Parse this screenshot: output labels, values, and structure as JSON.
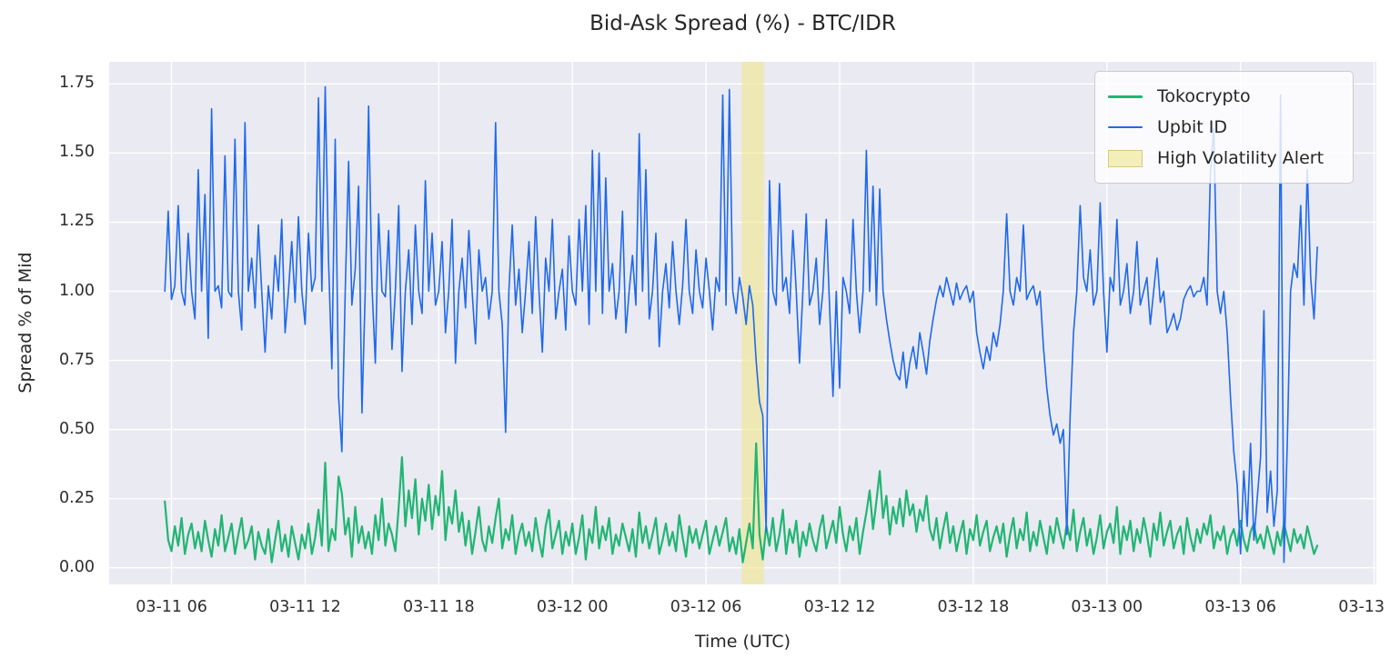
{
  "chart_data": {
    "type": "line",
    "title": "Bid-Ask Spread (%) - BTC/IDR",
    "xlabel": "Time (UTC)",
    "ylabel": "Spread % of Mid",
    "background": "#eaeaf2",
    "grid": true,
    "grid_color": "#ffffff",
    "xlim_hours": [
      3.2,
      60.1
    ],
    "ylim": [
      -0.06,
      1.83
    ],
    "x_ticks": [
      {
        "hour": 6,
        "label": "03-11 06"
      },
      {
        "hour": 12,
        "label": "03-11 12"
      },
      {
        "hour": 18,
        "label": "03-11 18"
      },
      {
        "hour": 24,
        "label": "03-12 00"
      },
      {
        "hour": 30,
        "label": "03-12 06"
      },
      {
        "hour": 36,
        "label": "03-12 12"
      },
      {
        "hour": 42,
        "label": "03-12 18"
      },
      {
        "hour": 48,
        "label": "03-13 00"
      },
      {
        "hour": 54,
        "label": "03-13 06"
      },
      {
        "hour": 60,
        "label": "03-13 12"
      }
    ],
    "y_ticks": [
      {
        "value": 0.0,
        "label": "0.00"
      },
      {
        "value": 0.25,
        "label": "0.25"
      },
      {
        "value": 0.5,
        "label": "0.50"
      },
      {
        "value": 0.75,
        "label": "0.75"
      },
      {
        "value": 1.0,
        "label": "1.00"
      },
      {
        "value": 1.25,
        "label": "1.25"
      },
      {
        "value": 1.5,
        "label": "1.50"
      },
      {
        "value": 1.75,
        "label": "1.75"
      }
    ],
    "x_start_hours": 5.7,
    "x_step_hours": 0.15,
    "highlight": {
      "label": "High Volatility Alert",
      "start_hour": 31.6,
      "end_hour": 32.6,
      "color": "rgba(240,230,140,0.6)",
      "edge": "#d5ca85"
    },
    "legend": {
      "position": "top-right"
    },
    "series": [
      {
        "name": "Tokocrypto",
        "color": "#21b573",
        "width": 2.2,
        "values": [
          0.24,
          0.1,
          0.06,
          0.15,
          0.08,
          0.18,
          0.05,
          0.12,
          0.16,
          0.07,
          0.13,
          0.06,
          0.17,
          0.1,
          0.04,
          0.14,
          0.08,
          0.19,
          0.06,
          0.11,
          0.16,
          0.05,
          0.12,
          0.18,
          0.07,
          0.1,
          0.15,
          0.03,
          0.13,
          0.08,
          0.05,
          0.14,
          0.02,
          0.1,
          0.17,
          0.06,
          0.12,
          0.04,
          0.15,
          0.09,
          0.03,
          0.12,
          0.07,
          0.16,
          0.05,
          0.11,
          0.21,
          0.08,
          0.38,
          0.06,
          0.14,
          0.1,
          0.33,
          0.27,
          0.12,
          0.18,
          0.04,
          0.22,
          0.09,
          0.15,
          0.07,
          0.13,
          0.05,
          0.19,
          0.1,
          0.25,
          0.08,
          0.16,
          0.12,
          0.06,
          0.22,
          0.4,
          0.15,
          0.28,
          0.18,
          0.32,
          0.12,
          0.25,
          0.17,
          0.3,
          0.14,
          0.26,
          0.19,
          0.35,
          0.1,
          0.22,
          0.16,
          0.28,
          0.13,
          0.2,
          0.08,
          0.17,
          0.05,
          0.13,
          0.22,
          0.1,
          0.06,
          0.15,
          0.09,
          0.18,
          0.25,
          0.07,
          0.14,
          0.1,
          0.19,
          0.05,
          0.12,
          0.16,
          0.08,
          0.13,
          0.06,
          0.18,
          0.1,
          0.04,
          0.15,
          0.21,
          0.07,
          0.12,
          0.17,
          0.05,
          0.13,
          0.08,
          0.16,
          0.05,
          0.11,
          0.19,
          0.03,
          0.14,
          0.09,
          0.22,
          0.07,
          0.15,
          0.1,
          0.18,
          0.05,
          0.12,
          0.08,
          0.16,
          0.11,
          0.06,
          0.14,
          0.04,
          0.2,
          0.09,
          0.15,
          0.07,
          0.12,
          0.18,
          0.05,
          0.1,
          0.16,
          0.08,
          0.13,
          0.06,
          0.19,
          0.11,
          0.04,
          0.15,
          0.09,
          0.14,
          0.07,
          0.12,
          0.17,
          0.05,
          0.1,
          0.15,
          0.08,
          0.13,
          0.18,
          0.06,
          0.11,
          0.05,
          0.14,
          0.02,
          0.09,
          0.16,
          0.07,
          0.45,
          0.12,
          0.03,
          0.15,
          0.08,
          0.18,
          0.06,
          0.12,
          0.21,
          0.05,
          0.14,
          0.09,
          0.17,
          0.04,
          0.13,
          0.08,
          0.16,
          0.1,
          0.06,
          0.14,
          0.19,
          0.07,
          0.12,
          0.17,
          0.09,
          0.22,
          0.12,
          0.06,
          0.15,
          0.1,
          0.18,
          0.05,
          0.13,
          0.2,
          0.28,
          0.14,
          0.24,
          0.35,
          0.18,
          0.26,
          0.12,
          0.22,
          0.16,
          0.25,
          0.15,
          0.28,
          0.19,
          0.23,
          0.13,
          0.21,
          0.17,
          0.26,
          0.14,
          0.1,
          0.18,
          0.07,
          0.14,
          0.2,
          0.09,
          0.15,
          0.06,
          0.12,
          0.17,
          0.05,
          0.14,
          0.1,
          0.19,
          0.08,
          0.13,
          0.17,
          0.06,
          0.11,
          0.15,
          0.09,
          0.16,
          0.04,
          0.12,
          0.18,
          0.07,
          0.14,
          0.1,
          0.2,
          0.06,
          0.13,
          0.08,
          0.17,
          0.11,
          0.05,
          0.15,
          0.09,
          0.18,
          0.12,
          0.07,
          0.16,
          0.1,
          0.21,
          0.06,
          0.13,
          0.18,
          0.08,
          0.14,
          0.05,
          0.11,
          0.19,
          0.07,
          0.13,
          0.16,
          0.09,
          0.22,
          0.05,
          0.15,
          0.1,
          0.17,
          0.06,
          0.14,
          0.09,
          0.18,
          0.12,
          0.04,
          0.16,
          0.1,
          0.2,
          0.08,
          0.13,
          0.17,
          0.07,
          0.12,
          0.15,
          0.05,
          0.18,
          0.11,
          0.06,
          0.14,
          0.09,
          0.16,
          0.12,
          0.19,
          0.07,
          0.13,
          0.1,
          0.15,
          0.05,
          0.11,
          0.14,
          0.08,
          0.17,
          0.1,
          0.06,
          0.13,
          0.16,
          0.09,
          0.12,
          0.07,
          0.15,
          0.1,
          0.05,
          0.13,
          0.08,
          0.16,
          0.11,
          0.06,
          0.14,
          0.09,
          0.12,
          0.07,
          0.15,
          0.1,
          0.05,
          0.08
        ]
      },
      {
        "name": "Upbit ID",
        "color": "#1f69eb",
        "width": 1.6,
        "values": [
          1.0,
          1.29,
          0.97,
          1.02,
          1.31,
          1.0,
          0.95,
          1.21,
          1.0,
          0.9,
          1.44,
          1.0,
          1.35,
          0.83,
          1.66,
          1.0,
          1.02,
          0.94,
          1.49,
          1.0,
          0.98,
          1.55,
          1.0,
          0.86,
          1.61,
          1.0,
          1.12,
          0.94,
          1.24,
          1.0,
          0.78,
          1.02,
          0.9,
          1.13,
          1.0,
          1.26,
          0.85,
          1.0,
          1.18,
          0.96,
          1.27,
          1.0,
          0.88,
          1.21,
          1.0,
          1.05,
          1.7,
          1.0,
          1.74,
          1.12,
          0.72,
          1.55,
          0.62,
          0.42,
          1.0,
          1.47,
          0.95,
          1.08,
          1.38,
          0.56,
          1.0,
          1.67,
          1.02,
          0.74,
          1.28,
          1.0,
          0.98,
          1.22,
          0.79,
          1.0,
          1.31,
          0.71,
          1.0,
          1.15,
          0.88,
          1.24,
          1.0,
          0.92,
          1.4,
          1.0,
          1.21,
          0.95,
          1.0,
          1.18,
          0.85,
          1.0,
          1.26,
          0.74,
          1.0,
          1.12,
          0.94,
          1.22,
          1.0,
          0.81,
          1.15,
          1.0,
          1.05,
          0.9,
          1.0,
          1.61,
          1.0,
          0.88,
          0.49,
          1.0,
          1.24,
          0.95,
          1.08,
          0.85,
          1.0,
          1.18,
          0.92,
          1.27,
          1.0,
          0.78,
          1.12,
          1.0,
          1.26,
          0.9,
          1.0,
          1.08,
          0.86,
          1.2,
          1.0,
          0.95,
          1.26,
          1.0,
          1.31,
          0.88,
          1.51,
          1.0,
          1.5,
          0.92,
          1.41,
          1.0,
          1.1,
          0.9,
          1.0,
          1.29,
          0.85,
          1.0,
          1.13,
          0.95,
          1.57,
          1.0,
          1.44,
          0.9,
          1.0,
          1.21,
          0.8,
          1.0,
          1.1,
          0.94,
          1.18,
          1.0,
          0.88,
          1.02,
          1.26,
          1.0,
          0.92,
          1.15,
          1.0,
          0.94,
          1.12,
          1.0,
          0.86,
          1.05,
          1.0,
          1.71,
          0.95,
          1.73,
          1.0,
          0.92,
          1.05,
          0.98,
          0.88,
          1.02,
          0.95,
          0.75,
          0.6,
          0.55,
          0.13,
          1.4,
          1.0,
          0.95,
          1.39,
          1.0,
          1.05,
          0.92,
          1.22,
          1.0,
          0.74,
          1.0,
          1.28,
          0.95,
          1.0,
          1.12,
          0.88,
          1.0,
          1.26,
          0.94,
          0.62,
          1.0,
          0.65,
          1.05,
          1.0,
          0.92,
          1.26,
          1.0,
          0.85,
          1.0,
          1.51,
          1.0,
          1.38,
          0.95,
          1.37,
          1.0,
          0.9,
          0.82,
          0.75,
          0.7,
          0.68,
          0.78,
          0.65,
          0.74,
          0.8,
          0.72,
          0.85,
          0.78,
          0.7,
          0.82,
          0.9,
          0.97,
          1.02,
          0.98,
          1.05,
          1.0,
          0.95,
          1.03,
          0.97,
          1.0,
          1.02,
          0.96,
          1.0,
          0.85,
          0.78,
          0.72,
          0.8,
          0.75,
          0.85,
          0.8,
          0.88,
          1.0,
          1.28,
          1.0,
          0.95,
          1.05,
          1.0,
          1.24,
          0.97,
          1.0,
          1.02,
          0.95,
          1.0,
          0.8,
          0.65,
          0.55,
          0.48,
          0.52,
          0.45,
          0.5,
          0.12,
          0.55,
          0.85,
          1.0,
          1.31,
          1.05,
          1.0,
          1.15,
          0.95,
          1.0,
          1.32,
          1.0,
          0.78,
          1.05,
          1.0,
          1.26,
          0.95,
          1.0,
          1.1,
          0.92,
          1.0,
          1.18,
          0.95,
          1.0,
          1.05,
          0.88,
          1.0,
          1.12,
          0.96,
          1.0,
          0.85,
          0.88,
          0.92,
          0.86,
          0.9,
          0.97,
          1.0,
          1.02,
          0.98,
          1.0,
          1.0,
          1.05,
          0.95,
          1.43,
          1.59,
          1.0,
          0.92,
          1.0,
          0.85,
          0.62,
          0.42,
          0.3,
          0.05,
          0.35,
          0.15,
          0.45,
          0.1,
          0.25,
          0.4,
          0.93,
          0.2,
          0.35,
          0.15,
          0.28,
          1.71,
          0.02,
          0.45,
          1.0,
          1.1,
          1.05,
          1.31,
          0.95,
          1.44,
          1.05,
          0.9,
          1.16
        ]
      }
    ]
  }
}
